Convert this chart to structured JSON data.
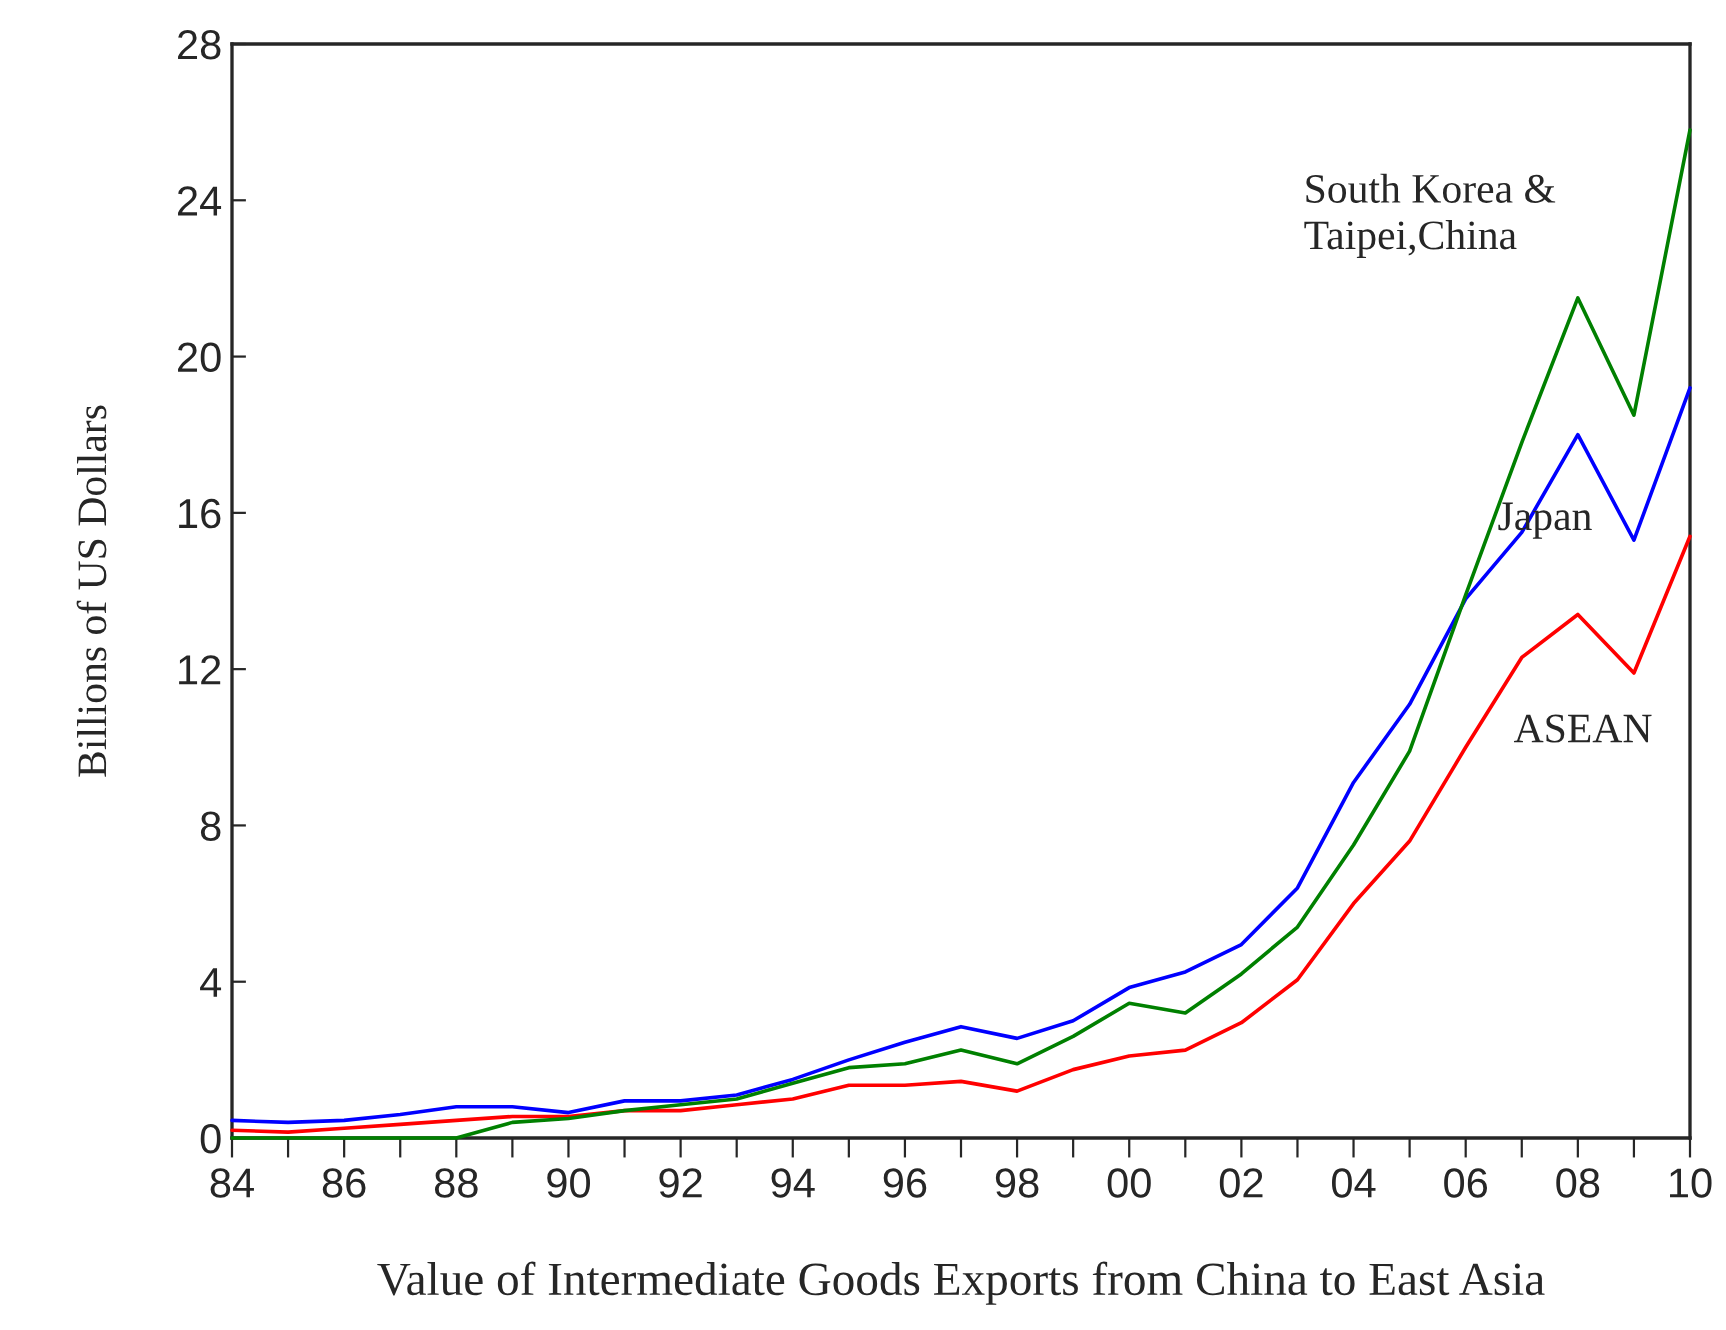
{
  "chart_data": {
    "type": "line",
    "xlabel": "Value of Intermediate Goods Exports from China to East Asia",
    "ylabel": "Billions of US Dollars",
    "x": [
      1984,
      1985,
      1986,
      1987,
      1988,
      1989,
      1990,
      1991,
      1992,
      1993,
      1994,
      1995,
      1996,
      1997,
      1998,
      1999,
      2000,
      2001,
      2002,
      2003,
      2004,
      2005,
      2006,
      2007,
      2008,
      2009,
      2010
    ],
    "series": [
      {
        "color": "#ff0000",
        "values": [
          0.2,
          0.15,
          0.25,
          0.35,
          0.45,
          0.55,
          0.55,
          0.7,
          0.7,
          0.85,
          1.0,
          1.35,
          1.35,
          1.45,
          1.2,
          1.75,
          2.1,
          2.25,
          2.95,
          4.05,
          6.0,
          7.6,
          10.0,
          12.3,
          13.4,
          11.9,
          15.4
        ]
      },
      {
        "color": "#0000ff",
        "values": [
          0.45,
          0.4,
          0.45,
          0.6,
          0.8,
          0.8,
          0.65,
          0.95,
          0.95,
          1.1,
          1.5,
          2.0,
          2.45,
          2.85,
          2.55,
          3.0,
          3.85,
          4.25,
          4.95,
          6.4,
          9.1,
          11.1,
          13.8,
          15.5,
          18.0,
          15.3,
          19.2
        ]
      },
      {
        "color": "#008000",
        "values": [
          0,
          0,
          0,
          0,
          0,
          0.4,
          0.5,
          0.7,
          0.85,
          1.0,
          1.4,
          1.8,
          1.9,
          2.25,
          1.9,
          2.6,
          3.45,
          3.2,
          4.2,
          5.4,
          7.5,
          9.9,
          13.9,
          17.8,
          21.5,
          18.5,
          25.8
        ]
      }
    ],
    "annotations": [
      "South Korea &\nTaipei,China",
      "Japan",
      "ASEAN"
    ],
    "xlim": [
      1984,
      2010
    ],
    "xticks": [
      {
        "value": 1984,
        "label": "84"
      },
      {
        "value": 1985,
        "label": null
      },
      {
        "value": 1986,
        "label": "86"
      },
      {
        "value": 1987,
        "label": null
      },
      {
        "value": 1988,
        "label": "88"
      },
      {
        "value": 1989,
        "label": null
      },
      {
        "value": 1990,
        "label": "90"
      },
      {
        "value": 1991,
        "label": null
      },
      {
        "value": 1992,
        "label": "92"
      },
      {
        "value": 1993,
        "label": null
      },
      {
        "value": 1994,
        "label": "94"
      },
      {
        "value": 1995,
        "label": null
      },
      {
        "value": 1996,
        "label": "96"
      },
      {
        "value": 1997,
        "label": null
      },
      {
        "value": 1998,
        "label": "98"
      },
      {
        "value": 1999,
        "label": null
      },
      {
        "value": 2000,
        "label": "00"
      },
      {
        "value": 2001,
        "label": null
      },
      {
        "value": 2002,
        "label": "02"
      },
      {
        "value": 2003,
        "label": null
      },
      {
        "value": 2004,
        "label": "04"
      },
      {
        "value": 2005,
        "label": null
      },
      {
        "value": 2006,
        "label": "06"
      },
      {
        "value": 2007,
        "label": null
      },
      {
        "value": 2008,
        "label": "08"
      },
      {
        "value": 2009,
        "label": null
      },
      {
        "value": 2010,
        "label": "10"
      }
    ],
    "ylim": [
      0,
      28
    ],
    "yticks": [
      0,
      4,
      8,
      12,
      16,
      20,
      24,
      28
    ],
    "grid": false,
    "line_style": "solid"
  }
}
